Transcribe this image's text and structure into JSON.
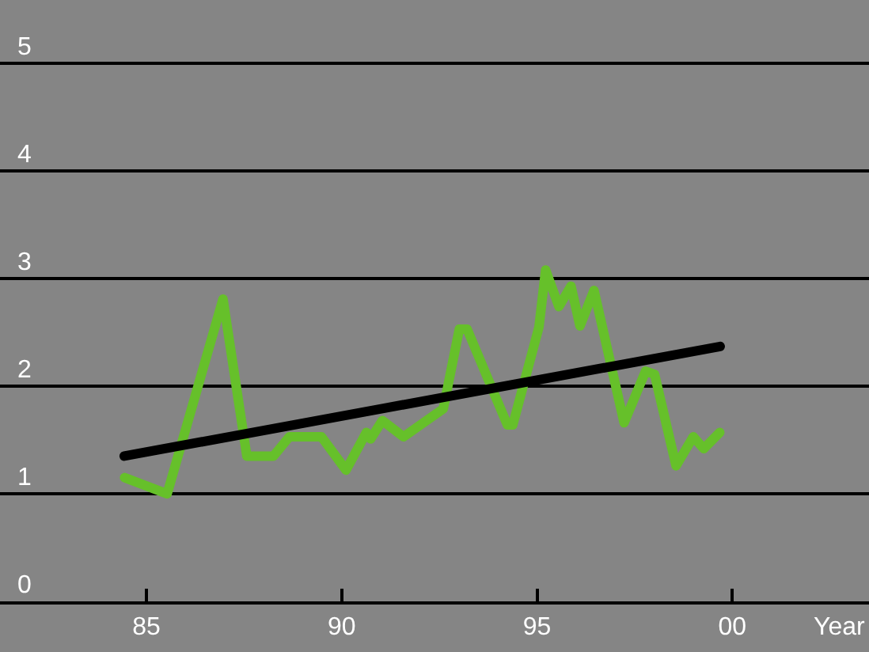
{
  "chart_data": {
    "type": "line",
    "xlabel": "Year",
    "xlim": [
      1981.25,
      2003.5
    ],
    "xticks": [
      {
        "value": 1985,
        "label": "85"
      },
      {
        "value": 1990,
        "label": "90"
      },
      {
        "value": 1995,
        "label": "95"
      },
      {
        "value": 2000,
        "label": "00"
      }
    ],
    "ylim": [
      0,
      5.59
    ],
    "yticks": [
      0,
      1,
      2,
      3,
      4,
      5
    ],
    "grid": "y",
    "marker": "none",
    "line_style": "solid",
    "series": [
      {
        "color": "#66c02a",
        "x": [
          1984.44,
          1985.53,
          1986.96,
          1987.57,
          1988.25,
          1988.66,
          1989.48,
          1990.11,
          1990.63,
          1990.74,
          1991.04,
          1991.58,
          1992.6,
          1993.01,
          1993.21,
          1994.24,
          1994.38,
          1995.05,
          1995.22,
          1995.56,
          1995.87,
          1996.1,
          1996.46,
          1997.23,
          1997.78,
          1998.01,
          1998.56,
          1999.0,
          1999.27,
          1999.68
        ],
        "values": [
          1.15,
          1.0,
          2.81,
          1.35,
          1.35,
          1.53,
          1.53,
          1.22,
          1.57,
          1.51,
          1.68,
          1.53,
          1.79,
          2.53,
          2.53,
          1.64,
          1.64,
          2.55,
          3.08,
          2.74,
          2.93,
          2.56,
          2.89,
          1.66,
          2.14,
          2.11,
          1.26,
          1.53,
          1.42,
          1.57
        ]
      },
      {
        "color": "#000000",
        "x": [
          1984.43,
          1999.69
        ],
        "values": [
          1.35,
          2.37
        ]
      }
    ]
  }
}
